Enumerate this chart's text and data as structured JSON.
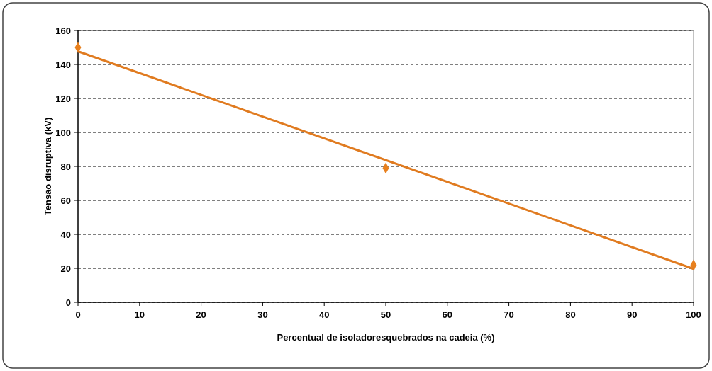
{
  "chart_data": {
    "type": "scatter",
    "xlabel": "Percentual de isoladoresquebrados na cadeia (%)",
    "ylabel": "Tensão disruptiva (kV)",
    "x": [
      0,
      50,
      100
    ],
    "series": [
      {
        "color": "#e8801e",
        "values": [
          150,
          79,
          22
        ],
        "marker": "diamond"
      },
      {
        "type": "line",
        "color": "#e07b20",
        "x": [
          0,
          100
        ],
        "values": [
          147.7,
          19.7
        ],
        "marker": "none"
      }
    ],
    "xlim": [
      0,
      100
    ],
    "xticks": [
      0,
      10,
      20,
      30,
      40,
      50,
      60,
      70,
      80,
      90,
      100
    ],
    "ylim": [
      0,
      160
    ],
    "yticks": [
      0,
      20,
      40,
      60,
      80,
      100,
      120,
      140,
      160
    ],
    "grid": "y"
  }
}
